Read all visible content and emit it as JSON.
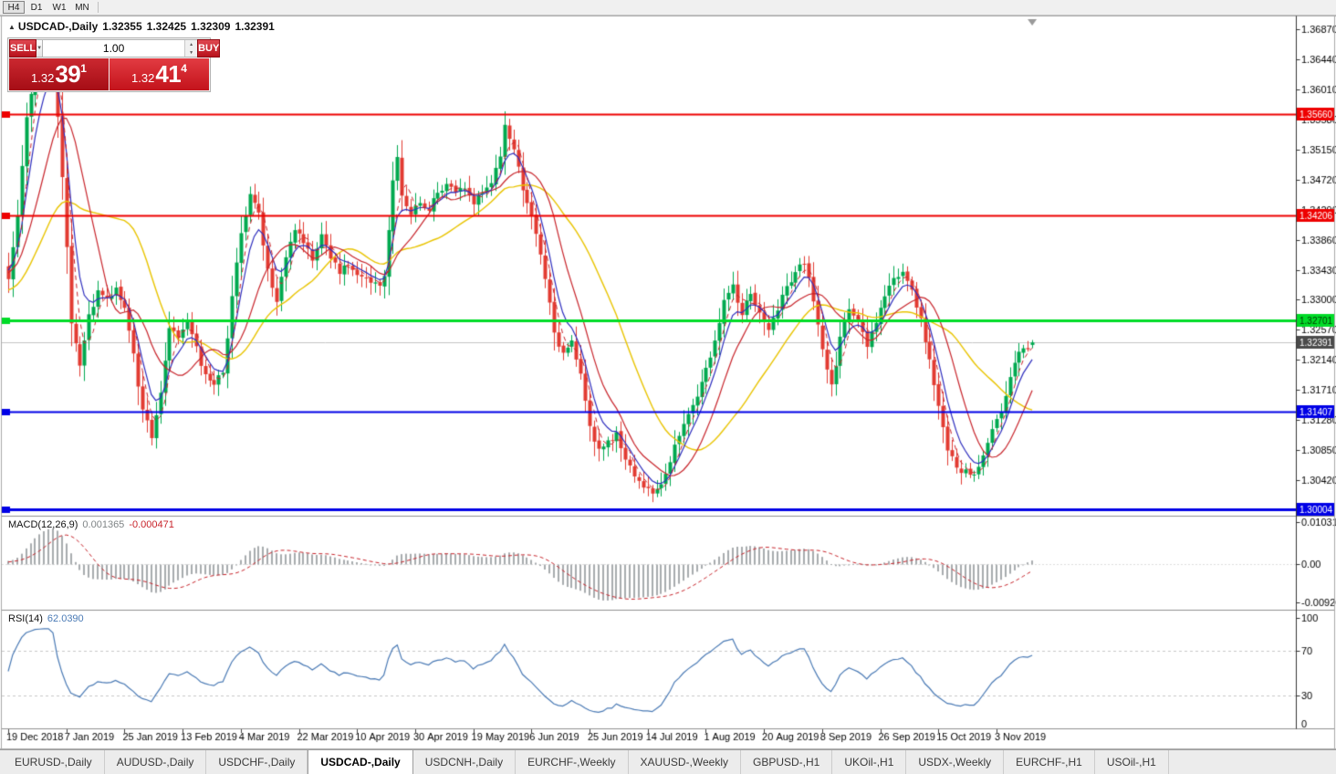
{
  "toolbar": {
    "timeframe_buttons": [
      {
        "label": "H4",
        "active": true
      },
      {
        "label": "D1",
        "active": false
      },
      {
        "label": "W1",
        "active": false
      },
      {
        "label": "MN",
        "active": false
      }
    ]
  },
  "chart_header": {
    "window_icon": "▲",
    "symbol_period": "USDCAD-,Daily",
    "open": "1.32355",
    "high": "1.32425",
    "low": "1.32309",
    "close": "1.32391"
  },
  "trade_panel": {
    "sell_button": "SELL",
    "buy_button": "BUY",
    "volume_value": "1.00",
    "dropdown_icon": "▼",
    "spin_up_icon": "▲",
    "spin_down_icon": "▼",
    "sell_quote": {
      "prefix": "1.32",
      "big": "39",
      "sup": "1"
    },
    "buy_quote": {
      "prefix": "1.32",
      "big": "41",
      "sup": "4"
    },
    "button_red": "#b8121c",
    "sell_quote_bg": "#a50d15",
    "buy_quote_bg": "#c3131b"
  },
  "tabs": [
    {
      "label": "EURUSD-,Daily",
      "active": false
    },
    {
      "label": "AUDUSD-,Daily",
      "active": false
    },
    {
      "label": "USDCHF-,Daily",
      "active": false
    },
    {
      "label": "USDCAD-,Daily",
      "active": true
    },
    {
      "label": "USDCNH-,Daily",
      "active": false
    },
    {
      "label": "EURCHF-,Weekly",
      "active": false
    },
    {
      "label": "XAUUSD-,Weekly",
      "active": false
    },
    {
      "label": "GBPUSD-,H1",
      "active": false
    },
    {
      "label": "UKOil-,H1",
      "active": false
    },
    {
      "label": "USDX-,Weekly",
      "active": false
    },
    {
      "label": "EURCHF-,H1",
      "active": false
    },
    {
      "label": "USOil-,H1",
      "active": false
    }
  ],
  "chart_data": {
    "type": "candlestick",
    "symbol": "USDCAD",
    "timeframe": "Daily",
    "x_axis_labels": [
      "19 Dec 2018",
      "7 Jan 2019",
      "25 Jan 2019",
      "13 Feb 2019",
      "4 Mar 2019",
      "22 Mar 2019",
      "10 Apr 2019",
      "30 Apr 2019",
      "19 May 2019",
      "6 Jun 2019",
      "25 Jun 2019",
      "14 Jul 2019",
      "1 Aug 2019",
      "20 Aug 2019",
      "8 Sep 2019",
      "26 Sep 2019",
      "15 Oct 2019",
      "3 Nov 2019"
    ],
    "bars_per_label": 13,
    "price_axis": {
      "top_value": 1.3687,
      "step": 0.0043,
      "labels": [
        "1.36870",
        "1.36440",
        "1.36010",
        "1.35580",
        "1.35150",
        "1.34720",
        "1.34290",
        "1.33860",
        "1.33430",
        "1.33000",
        "1.32570",
        "1.32140",
        "1.31710",
        "1.31280",
        "1.30850",
        "1.30420"
      ]
    },
    "candles": {
      "count": 230,
      "up_color": "#00a94f",
      "down_color": "#e23b32",
      "last_ohlc": [
        1.32355,
        1.32425,
        1.32309,
        1.32391
      ],
      "close_anchors": [
        [
          0,
          1.333
        ],
        [
          2,
          1.342
        ],
        [
          4,
          1.356
        ],
        [
          6,
          1.363
        ],
        [
          8,
          1.3655
        ],
        [
          10,
          1.365
        ],
        [
          12,
          1.348
        ],
        [
          14,
          1.327
        ],
        [
          16,
          1.321
        ],
        [
          18,
          1.328
        ],
        [
          20,
          1.331
        ],
        [
          22,
          1.33
        ],
        [
          24,
          1.332
        ],
        [
          26,
          1.329
        ],
        [
          28,
          1.322
        ],
        [
          30,
          1.314
        ],
        [
          32,
          1.3105
        ],
        [
          34,
          1.317
        ],
        [
          36,
          1.326
        ],
        [
          38,
          1.325
        ],
        [
          40,
          1.327
        ],
        [
          42,
          1.323
        ],
        [
          44,
          1.319
        ],
        [
          46,
          1.3175
        ],
        [
          48,
          1.32
        ],
        [
          50,
          1.33
        ],
        [
          52,
          1.34
        ],
        [
          54,
          1.345
        ],
        [
          56,
          1.342
        ],
        [
          58,
          1.334
        ],
        [
          60,
          1.33
        ],
        [
          62,
          1.336
        ],
        [
          64,
          1.34
        ],
        [
          66,
          1.338
        ],
        [
          68,
          1.336
        ],
        [
          70,
          1.339
        ],
        [
          72,
          1.336
        ],
        [
          74,
          1.334
        ],
        [
          76,
          1.335
        ],
        [
          78,
          1.334
        ],
        [
          80,
          1.333
        ],
        [
          82,
          1.332
        ],
        [
          84,
          1.333
        ],
        [
          86,
          1.347
        ],
        [
          87,
          1.35
        ],
        [
          88,
          1.345
        ],
        [
          90,
          1.342
        ],
        [
          92,
          1.344
        ],
        [
          94,
          1.343
        ],
        [
          96,
          1.345
        ],
        [
          98,
          1.347
        ],
        [
          100,
          1.345
        ],
        [
          102,
          1.346
        ],
        [
          104,
          1.344
        ],
        [
          106,
          1.345
        ],
        [
          108,
          1.347
        ],
        [
          110,
          1.351
        ],
        [
          111,
          1.3545
        ],
        [
          113,
          1.351
        ],
        [
          115,
          1.346
        ],
        [
          117,
          1.342
        ],
        [
          119,
          1.336
        ],
        [
          121,
          1.33
        ],
        [
          122,
          1.325
        ],
        [
          124,
          1.322
        ],
        [
          126,
          1.324
        ],
        [
          128,
          1.319
        ],
        [
          130,
          1.312
        ],
        [
          132,
          1.3085
        ],
        [
          134,
          1.3095
        ],
        [
          136,
          1.311
        ],
        [
          138,
          1.3075
        ],
        [
          140,
          1.305
        ],
        [
          142,
          1.3035
        ],
        [
          144,
          1.302
        ],
        [
          146,
          1.3035
        ],
        [
          148,
          1.307
        ],
        [
          150,
          1.311
        ],
        [
          152,
          1.314
        ],
        [
          154,
          1.3165
        ],
        [
          156,
          1.32
        ],
        [
          158,
          1.324
        ],
        [
          160,
          1.33
        ],
        [
          162,
          1.332
        ],
        [
          164,
          1.328
        ],
        [
          166,
          1.331
        ],
        [
          168,
          1.328
        ],
        [
          170,
          1.326
        ],
        [
          172,
          1.329
        ],
        [
          174,
          1.332
        ],
        [
          176,
          1.334
        ],
        [
          178,
          1.3355
        ],
        [
          180,
          1.33
        ],
        [
          182,
          1.323
        ],
        [
          184,
          1.3175
        ],
        [
          186,
          1.3245
        ],
        [
          188,
          1.329
        ],
        [
          190,
          1.327
        ],
        [
          192,
          1.3235
        ],
        [
          194,
          1.327
        ],
        [
          196,
          1.331
        ],
        [
          198,
          1.3335
        ],
        [
          200,
          1.334
        ],
        [
          202,
          1.331
        ],
        [
          204,
          1.327
        ],
        [
          206,
          1.321
        ],
        [
          208,
          1.315
        ],
        [
          210,
          1.309
        ],
        [
          212,
          1.306
        ],
        [
          214,
          1.3055
        ],
        [
          216,
          1.3045
        ],
        [
          218,
          1.308
        ],
        [
          220,
          1.312
        ],
        [
          222,
          1.3145
        ],
        [
          224,
          1.319
        ],
        [
          226,
          1.3225
        ],
        [
          228,
          1.323
        ],
        [
          229,
          1.32391
        ]
      ]
    },
    "moving_averages": [
      {
        "period": 26,
        "method": "sma",
        "color": "#e9c400",
        "style": "solid",
        "width": 1.4
      },
      {
        "period": 12,
        "method": "sma",
        "color": "#c8242b",
        "style": "solid",
        "width": 1.2
      },
      {
        "period": 6,
        "method": "ema",
        "color": "#2d2dbe",
        "style": "solid",
        "width": 1.2
      },
      {
        "period": 4,
        "method": "sma",
        "color": "#c8242b",
        "style": "dash",
        "width": 1
      }
    ],
    "horizontal_lines": [
      {
        "price": 1.3566,
        "label": "1.35660",
        "color": "#ee0000",
        "width": 2,
        "label_text_color": "#ffffff"
      },
      {
        "price": 1.34206,
        "label": "1.34206",
        "color": "#ee0000",
        "width": 2,
        "label_text_color": "#ffffff"
      },
      {
        "price": 1.32701,
        "label": "1.32701",
        "color": "#00dc28",
        "width": 3,
        "label_text_color": "#003300"
      },
      {
        "price": 1.31407,
        "label": "1.31407",
        "color": "#0000e6",
        "width": 2,
        "label_text_color": "#ffffff"
      },
      {
        "price": 1.30004,
        "label": "1.30004",
        "color": "#0000e6",
        "width": 3,
        "label_text_color": "#ffffff"
      }
    ],
    "bid_line": {
      "price": 1.32391,
      "label": "1.32391",
      "line_color": "#c4c4c4",
      "tag_bg": "#4a4a4a",
      "tag_text_color": "#ffffff"
    },
    "macd": {
      "name": "MACD(12,26,9)",
      "value_main": "0.001365",
      "value_signal": "-0.000471",
      "fast": 12,
      "slow": 26,
      "signal": 9,
      "histogram_color": "#a8abae",
      "signal_color": "#c8242b",
      "axis_labels": [
        {
          "text": "0.010311",
          "value": 0.010311
        },
        {
          "text": "0.00",
          "value": 0
        },
        {
          "text": "-0.009203",
          "value": -0.009203
        }
      ]
    },
    "rsi": {
      "name": "RSI(14)",
      "value": "62.0390",
      "period": 14,
      "line_color": "#4a7ab5",
      "level_color": "#c8c8c8",
      "levels": [
        70,
        30
      ],
      "axis_labels": [
        {
          "text": "100",
          "value": 100
        },
        {
          "text": "70",
          "value": 70
        },
        {
          "text": "30",
          "value": 30
        },
        {
          "text": "0",
          "value": 0
        }
      ]
    }
  }
}
